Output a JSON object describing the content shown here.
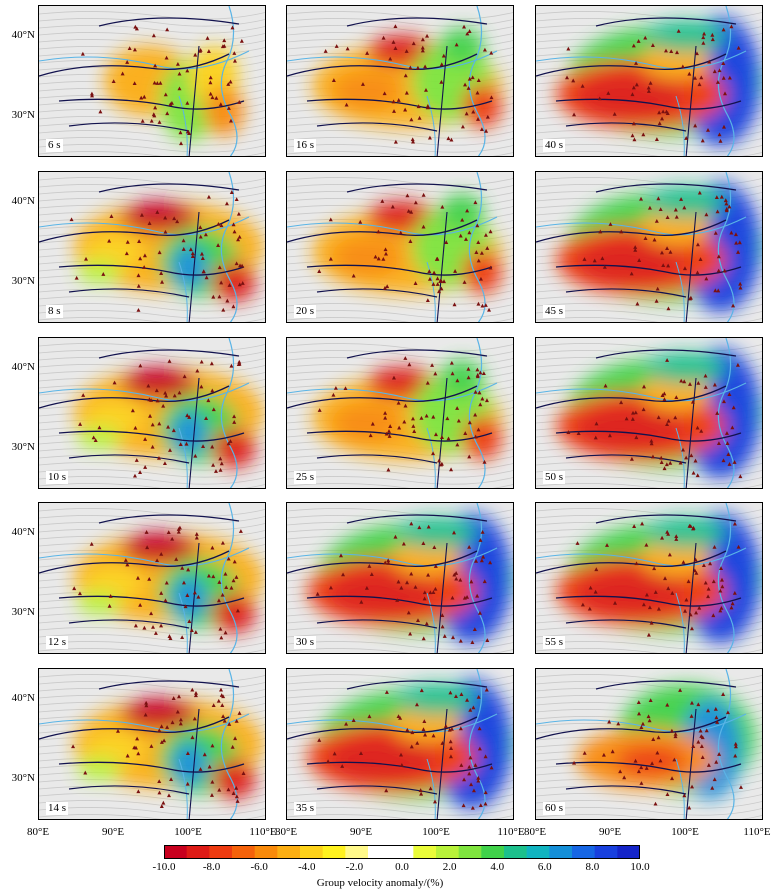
{
  "panels": [
    {
      "period": "6 s",
      "col": 0,
      "row": 0,
      "mode": "sparse"
    },
    {
      "period": "16 s",
      "col": 1,
      "row": 0,
      "mode": "mid"
    },
    {
      "period": "40 s",
      "col": 2,
      "row": 0,
      "mode": "long"
    },
    {
      "period": "8 s",
      "col": 0,
      "row": 1,
      "mode": "short"
    },
    {
      "period": "20 s",
      "col": 1,
      "row": 1,
      "mode": "mid"
    },
    {
      "period": "45 s",
      "col": 2,
      "row": 1,
      "mode": "long"
    },
    {
      "period": "10 s",
      "col": 0,
      "row": 2,
      "mode": "short"
    },
    {
      "period": "25 s",
      "col": 1,
      "row": 2,
      "mode": "mid"
    },
    {
      "period": "50 s",
      "col": 2,
      "row": 2,
      "mode": "long"
    },
    {
      "period": "12 s",
      "col": 0,
      "row": 3,
      "mode": "short"
    },
    {
      "period": "30 s",
      "col": 1,
      "row": 3,
      "mode": "long"
    },
    {
      "period": "55 s",
      "col": 2,
      "row": 3,
      "mode": "long"
    },
    {
      "period": "14 s",
      "col": 0,
      "row": 4,
      "mode": "short"
    },
    {
      "period": "35 s",
      "col": 1,
      "row": 4,
      "mode": "long"
    },
    {
      "period": "60 s",
      "col": 2,
      "row": 4,
      "mode": "late"
    }
  ],
  "lat_labels": [
    "40°N",
    "30°N"
  ],
  "lon_labels": [
    "80°E",
    "90°E",
    "100°E",
    "110°E"
  ],
  "colorbar": {
    "title": "Group velocity anomaly/(%)",
    "ticks": [
      "-10.0",
      "-8.0",
      "-6.0",
      "-4.0",
      "-2.0",
      "0.0",
      "2.0",
      "4.0",
      "6.0",
      "8.0",
      "10.0"
    ],
    "range": [
      -10,
      10
    ],
    "colors": [
      "#c8001e",
      "#de1b16",
      "#ee3b10",
      "#f5620a",
      "#f98a0a",
      "#fcae12",
      "#fdd21a",
      "#fff21f",
      "#fff98a",
      "#ffffff",
      "#ffffff",
      "#eafc3a",
      "#b8f23a",
      "#7fe43e",
      "#40d24a",
      "#1cc08c",
      "#10b4c0",
      "#148fd8",
      "#1666e4",
      "#1840de",
      "#1424c8"
    ]
  }
}
